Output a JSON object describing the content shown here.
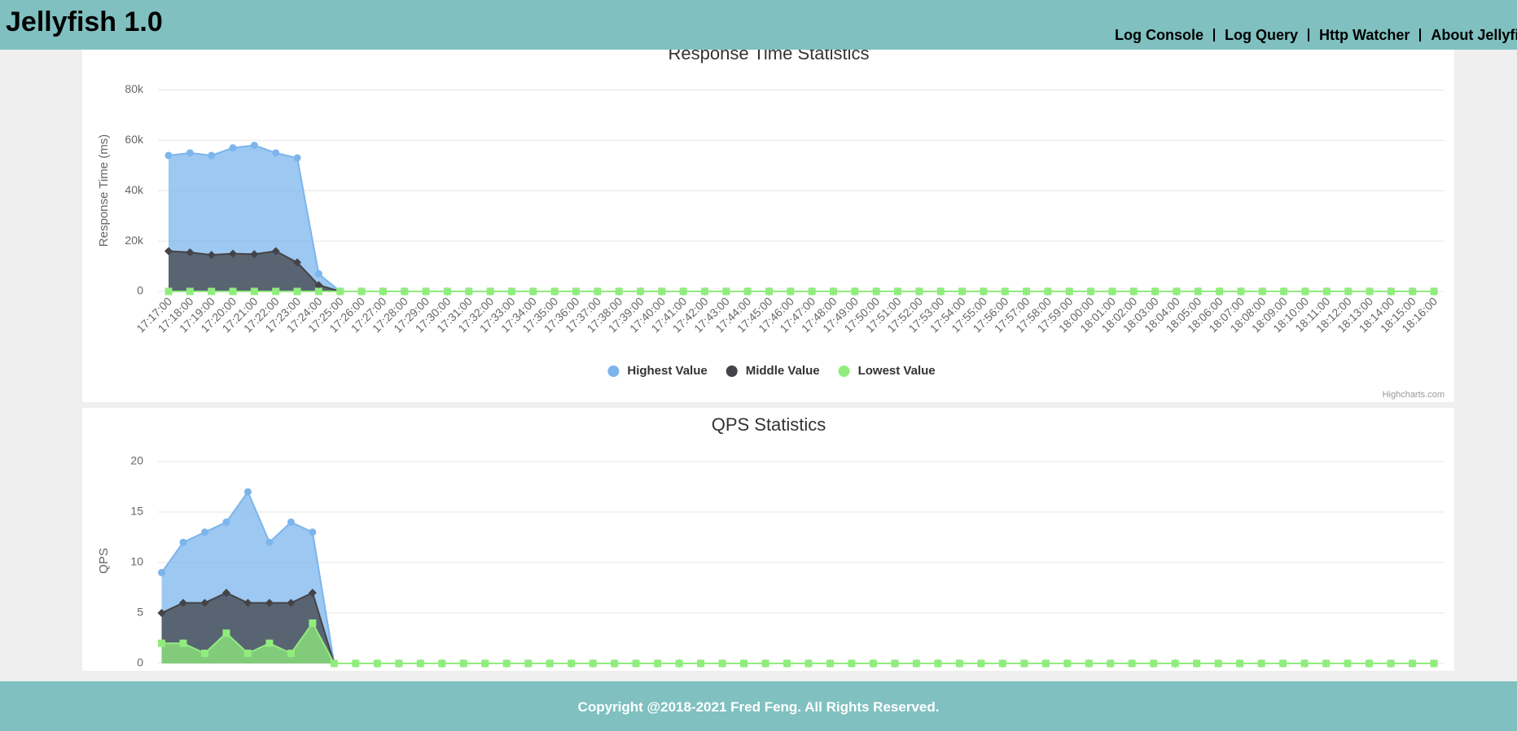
{
  "header": {
    "title": "Jellyfish 1.0",
    "nav": [
      "Log Console",
      "Log Query",
      "Http Watcher",
      "About Jellyfish"
    ]
  },
  "chart_data": [
    {
      "type": "area",
      "title": "Response Time Statistics",
      "y_label": "Response Time (ms)",
      "categories": [
        "17:17:00",
        "17:18:00",
        "17:19:00",
        "17:20:00",
        "17:21:00",
        "17:22:00",
        "17:23:00",
        "17:24:00",
        "17:25:00",
        "17:26:00",
        "17:27:00",
        "17:28:00",
        "17:29:00",
        "17:30:00",
        "17:31:00",
        "17:32:00",
        "17:33:00",
        "17:34:00",
        "17:35:00",
        "17:36:00",
        "17:37:00",
        "17:38:00",
        "17:39:00",
        "17:40:00",
        "17:41:00",
        "17:42:00",
        "17:43:00",
        "17:44:00",
        "17:45:00",
        "17:46:00",
        "17:47:00",
        "17:48:00",
        "17:49:00",
        "17:50:00",
        "17:51:00",
        "17:52:00",
        "17:53:00",
        "17:54:00",
        "17:55:00",
        "17:56:00",
        "17:57:00",
        "17:58:00",
        "17:59:00",
        "18:00:00",
        "18:01:00",
        "18:02:00",
        "18:03:00",
        "18:04:00",
        "18:05:00",
        "18:06:00",
        "18:07:00",
        "18:08:00",
        "18:09:00",
        "18:10:00",
        "18:11:00",
        "18:12:00",
        "18:13:00",
        "18:14:00",
        "18:15:00",
        "18:16:00"
      ],
      "series": [
        {
          "name": "Highest Value",
          "color": "#7cb5ec",
          "marker": "circle",
          "values": [
            54000,
            55000,
            54000,
            57000,
            58000,
            55000,
            53000,
            7000,
            0,
            0,
            0,
            0,
            0,
            0,
            0,
            0,
            0,
            0,
            0,
            0,
            0,
            0,
            0,
            0,
            0,
            0,
            0,
            0,
            0,
            0,
            0,
            0,
            0,
            0,
            0,
            0,
            0,
            0,
            0,
            0,
            0,
            0,
            0,
            0,
            0,
            0,
            0,
            0,
            0,
            0,
            0,
            0,
            0,
            0,
            0,
            0,
            0,
            0,
            0,
            0
          ]
        },
        {
          "name": "Middle Value",
          "color": "#434348",
          "marker": "diamond",
          "values": [
            16000,
            15500,
            14500,
            15000,
            14800,
            16000,
            11500,
            2500,
            0,
            0,
            0,
            0,
            0,
            0,
            0,
            0,
            0,
            0,
            0,
            0,
            0,
            0,
            0,
            0,
            0,
            0,
            0,
            0,
            0,
            0,
            0,
            0,
            0,
            0,
            0,
            0,
            0,
            0,
            0,
            0,
            0,
            0,
            0,
            0,
            0,
            0,
            0,
            0,
            0,
            0,
            0,
            0,
            0,
            0,
            0,
            0,
            0,
            0,
            0,
            0
          ]
        },
        {
          "name": "Lowest Value",
          "color": "#90ed7d",
          "marker": "square",
          "values": [
            0,
            0,
            0,
            0,
            0,
            0,
            0,
            0,
            0,
            0,
            0,
            0,
            0,
            0,
            0,
            0,
            0,
            0,
            0,
            0,
            0,
            0,
            0,
            0,
            0,
            0,
            0,
            0,
            0,
            0,
            0,
            0,
            0,
            0,
            0,
            0,
            0,
            0,
            0,
            0,
            0,
            0,
            0,
            0,
            0,
            0,
            0,
            0,
            0,
            0,
            0,
            0,
            0,
            0,
            0,
            0,
            0,
            0,
            0,
            0
          ]
        }
      ],
      "ylim": [
        0,
        80000
      ],
      "yticks": [
        0,
        {
          "value": 20000,
          "label": "20k"
        },
        {
          "value": 40000,
          "label": "40k"
        },
        {
          "value": 60000,
          "label": "60k"
        },
        {
          "value": 80000,
          "label": "80k"
        }
      ],
      "grid": true,
      "legend": "bottom",
      "credits": "Highcharts.com"
    },
    {
      "type": "area",
      "title": "QPS Statistics",
      "y_label": "QPS",
      "series": [
        {
          "color": "#7cb5ec",
          "marker": "circle",
          "values": [
            9,
            12,
            13,
            14,
            17,
            12,
            14,
            13,
            0,
            0,
            0,
            0,
            0,
            0,
            0,
            0,
            0,
            0,
            0,
            0,
            0,
            0,
            0,
            0,
            0,
            0,
            0,
            0,
            0,
            0,
            0,
            0,
            0,
            0,
            0,
            0,
            0,
            0,
            0,
            0,
            0,
            0,
            0,
            0,
            0,
            0,
            0,
            0,
            0,
            0,
            0,
            0,
            0,
            0,
            0,
            0,
            0,
            0,
            0,
            0
          ]
        },
        {
          "color": "#434348",
          "marker": "diamond",
          "values": [
            5,
            6,
            6,
            7,
            6,
            6,
            6,
            7,
            0,
            0,
            0,
            0,
            0,
            0,
            0,
            0,
            0,
            0,
            0,
            0,
            0,
            0,
            0,
            0,
            0,
            0,
            0,
            0,
            0,
            0,
            0,
            0,
            0,
            0,
            0,
            0,
            0,
            0,
            0,
            0,
            0,
            0,
            0,
            0,
            0,
            0,
            0,
            0,
            0,
            0,
            0,
            0,
            0,
            0,
            0,
            0,
            0,
            0,
            0,
            0
          ]
        },
        {
          "color": "#90ed7d",
          "marker": "square",
          "values": [
            2,
            2,
            1,
            3,
            1,
            2,
            1,
            4,
            0,
            0,
            0,
            0,
            0,
            0,
            0,
            0,
            0,
            0,
            0,
            0,
            0,
            0,
            0,
            0,
            0,
            0,
            0,
            0,
            0,
            0,
            0,
            0,
            0,
            0,
            0,
            0,
            0,
            0,
            0,
            0,
            0,
            0,
            0,
            0,
            0,
            0,
            0,
            0,
            0,
            0,
            0,
            0,
            0,
            0,
            0,
            0,
            0,
            0,
            0,
            0
          ]
        }
      ],
      "ylim": [
        0,
        20
      ],
      "yticks": [
        0,
        5,
        10,
        15,
        20
      ],
      "grid": true
    }
  ],
  "footer": {
    "text": "Copyright @2018-2021 Fred Feng. All Rights Reserved."
  }
}
